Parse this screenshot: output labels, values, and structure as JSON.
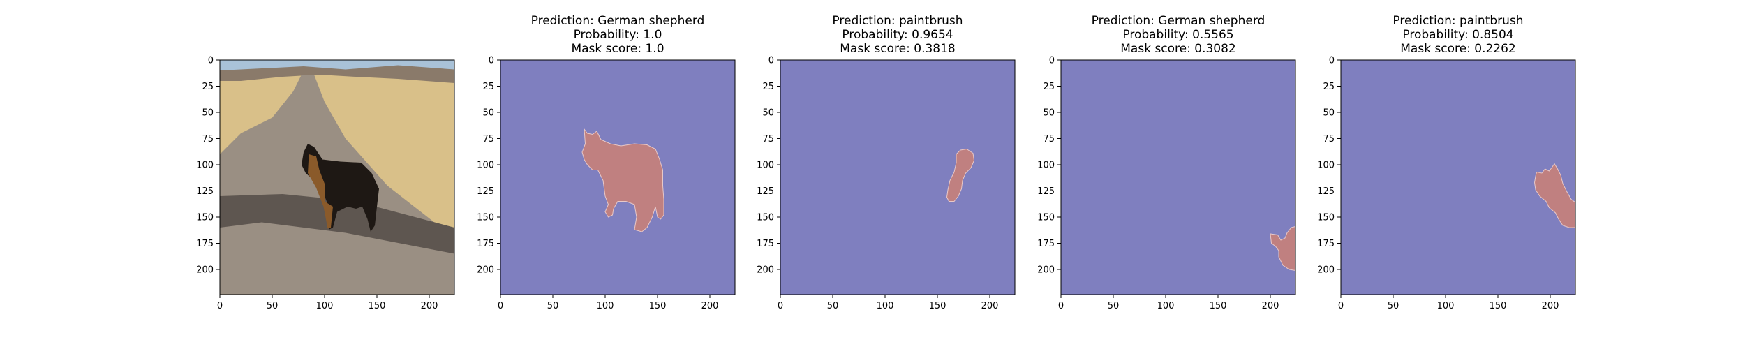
{
  "chart_data": [
    {
      "type": "image",
      "title": [],
      "content": "photo",
      "xticks": [
        0,
        50,
        100,
        150,
        200
      ],
      "yticks": [
        0,
        25,
        50,
        75,
        100,
        125,
        150,
        175,
        200
      ],
      "xlim": [
        0,
        224
      ],
      "ylim": [
        224,
        0
      ]
    },
    {
      "type": "heatmap",
      "title": [
        "Prediction: German shepherd",
        "Probability: 1.0",
        "Mask score: 1.0"
      ],
      "content": "mask",
      "mask_region": "dog",
      "xticks": [
        0,
        50,
        100,
        150,
        200
      ],
      "yticks": [
        0,
        25,
        50,
        75,
        100,
        125,
        150,
        175,
        200
      ],
      "xlim": [
        0,
        224
      ],
      "ylim": [
        224,
        0
      ]
    },
    {
      "type": "heatmap",
      "title": [
        "Prediction: paintbrush",
        "Probability: 0.9654",
        "Mask score: 0.3818"
      ],
      "content": "mask",
      "mask_region": "tail",
      "xticks": [
        0,
        50,
        100,
        150,
        200
      ],
      "yticks": [
        0,
        25,
        50,
        75,
        100,
        125,
        150,
        175,
        200
      ],
      "xlim": [
        0,
        224
      ],
      "ylim": [
        224,
        0
      ]
    },
    {
      "type": "heatmap",
      "title": [
        "Prediction: German shepherd",
        "Probability: 0.5565",
        "Mask score: 0.3082"
      ],
      "content": "mask",
      "mask_region": "right-edge",
      "xticks": [
        0,
        50,
        100,
        150,
        200
      ],
      "yticks": [
        0,
        25,
        50,
        75,
        100,
        125,
        150,
        175,
        200
      ],
      "xlim": [
        0,
        224
      ],
      "ylim": [
        224,
        0
      ]
    },
    {
      "type": "heatmap",
      "title": [
        "Prediction: paintbrush",
        "Probability: 0.8504",
        "Mask score: 0.2262"
      ],
      "content": "mask",
      "mask_region": "grass",
      "xticks": [
        0,
        50,
        100,
        150,
        200
      ],
      "yticks": [
        0,
        25,
        50,
        75,
        100,
        125,
        150,
        175,
        200
      ],
      "xlim": [
        0,
        224
      ],
      "ylim": [
        224,
        0
      ]
    }
  ],
  "colors": {
    "mask_background": "#7f7fbf",
    "mask_foreground": "#c08080",
    "mask_outline": "#e8c8c8",
    "sky": "#a9c2d8",
    "hills": "#8a7a6a",
    "field": "#d9c089",
    "road": "#9a8f83",
    "shadow": "#5e5650",
    "dog_dark": "#1e1814",
    "dog_tan": "#8a5a2a"
  }
}
